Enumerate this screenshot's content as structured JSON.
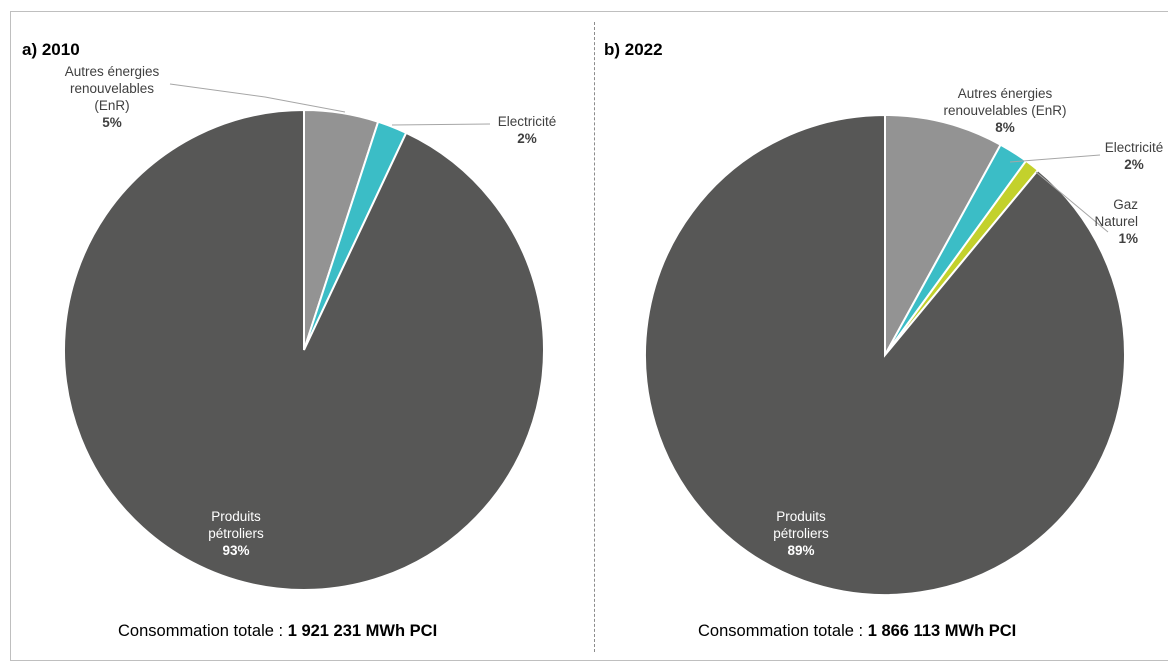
{
  "chart_data": [
    {
      "type": "pie",
      "title": "a) 2010",
      "total_label": "Consommation totale :",
      "total_value": "1 921 231 MWh PCI",
      "slices": [
        {
          "label_lines": [
            "Autres énergies",
            "renouvelables",
            "(EnR)"
          ],
          "value": 5,
          "pct": "5%",
          "color": "#939393"
        },
        {
          "label_lines": [
            "Electricité"
          ],
          "value": 2,
          "pct": "2%",
          "color": "#3bbdc6"
        },
        {
          "label_lines": [
            "Produits",
            "pétroliers"
          ],
          "value": 93,
          "pct": "93%",
          "color": "#575756"
        }
      ]
    },
    {
      "type": "pie",
      "title": "b) 2022",
      "total_label": "Consommation totale :",
      "total_value": "1 866 113 MWh PCI",
      "slices": [
        {
          "label_lines": [
            "Autres énergies",
            "renouvelables (EnR)"
          ],
          "value": 8,
          "pct": "8%",
          "color": "#939393"
        },
        {
          "label_lines": [
            "Electricité"
          ],
          "value": 2,
          "pct": "2%",
          "color": "#3bbdc6"
        },
        {
          "label_lines": [
            "Gaz",
            "Naturel"
          ],
          "value": 1,
          "pct": "1%",
          "color": "#c3d12c"
        },
        {
          "label_lines": [
            "Produits",
            "pétroliers"
          ],
          "value": 89,
          "pct": "89%",
          "color": "#575756"
        }
      ]
    }
  ]
}
